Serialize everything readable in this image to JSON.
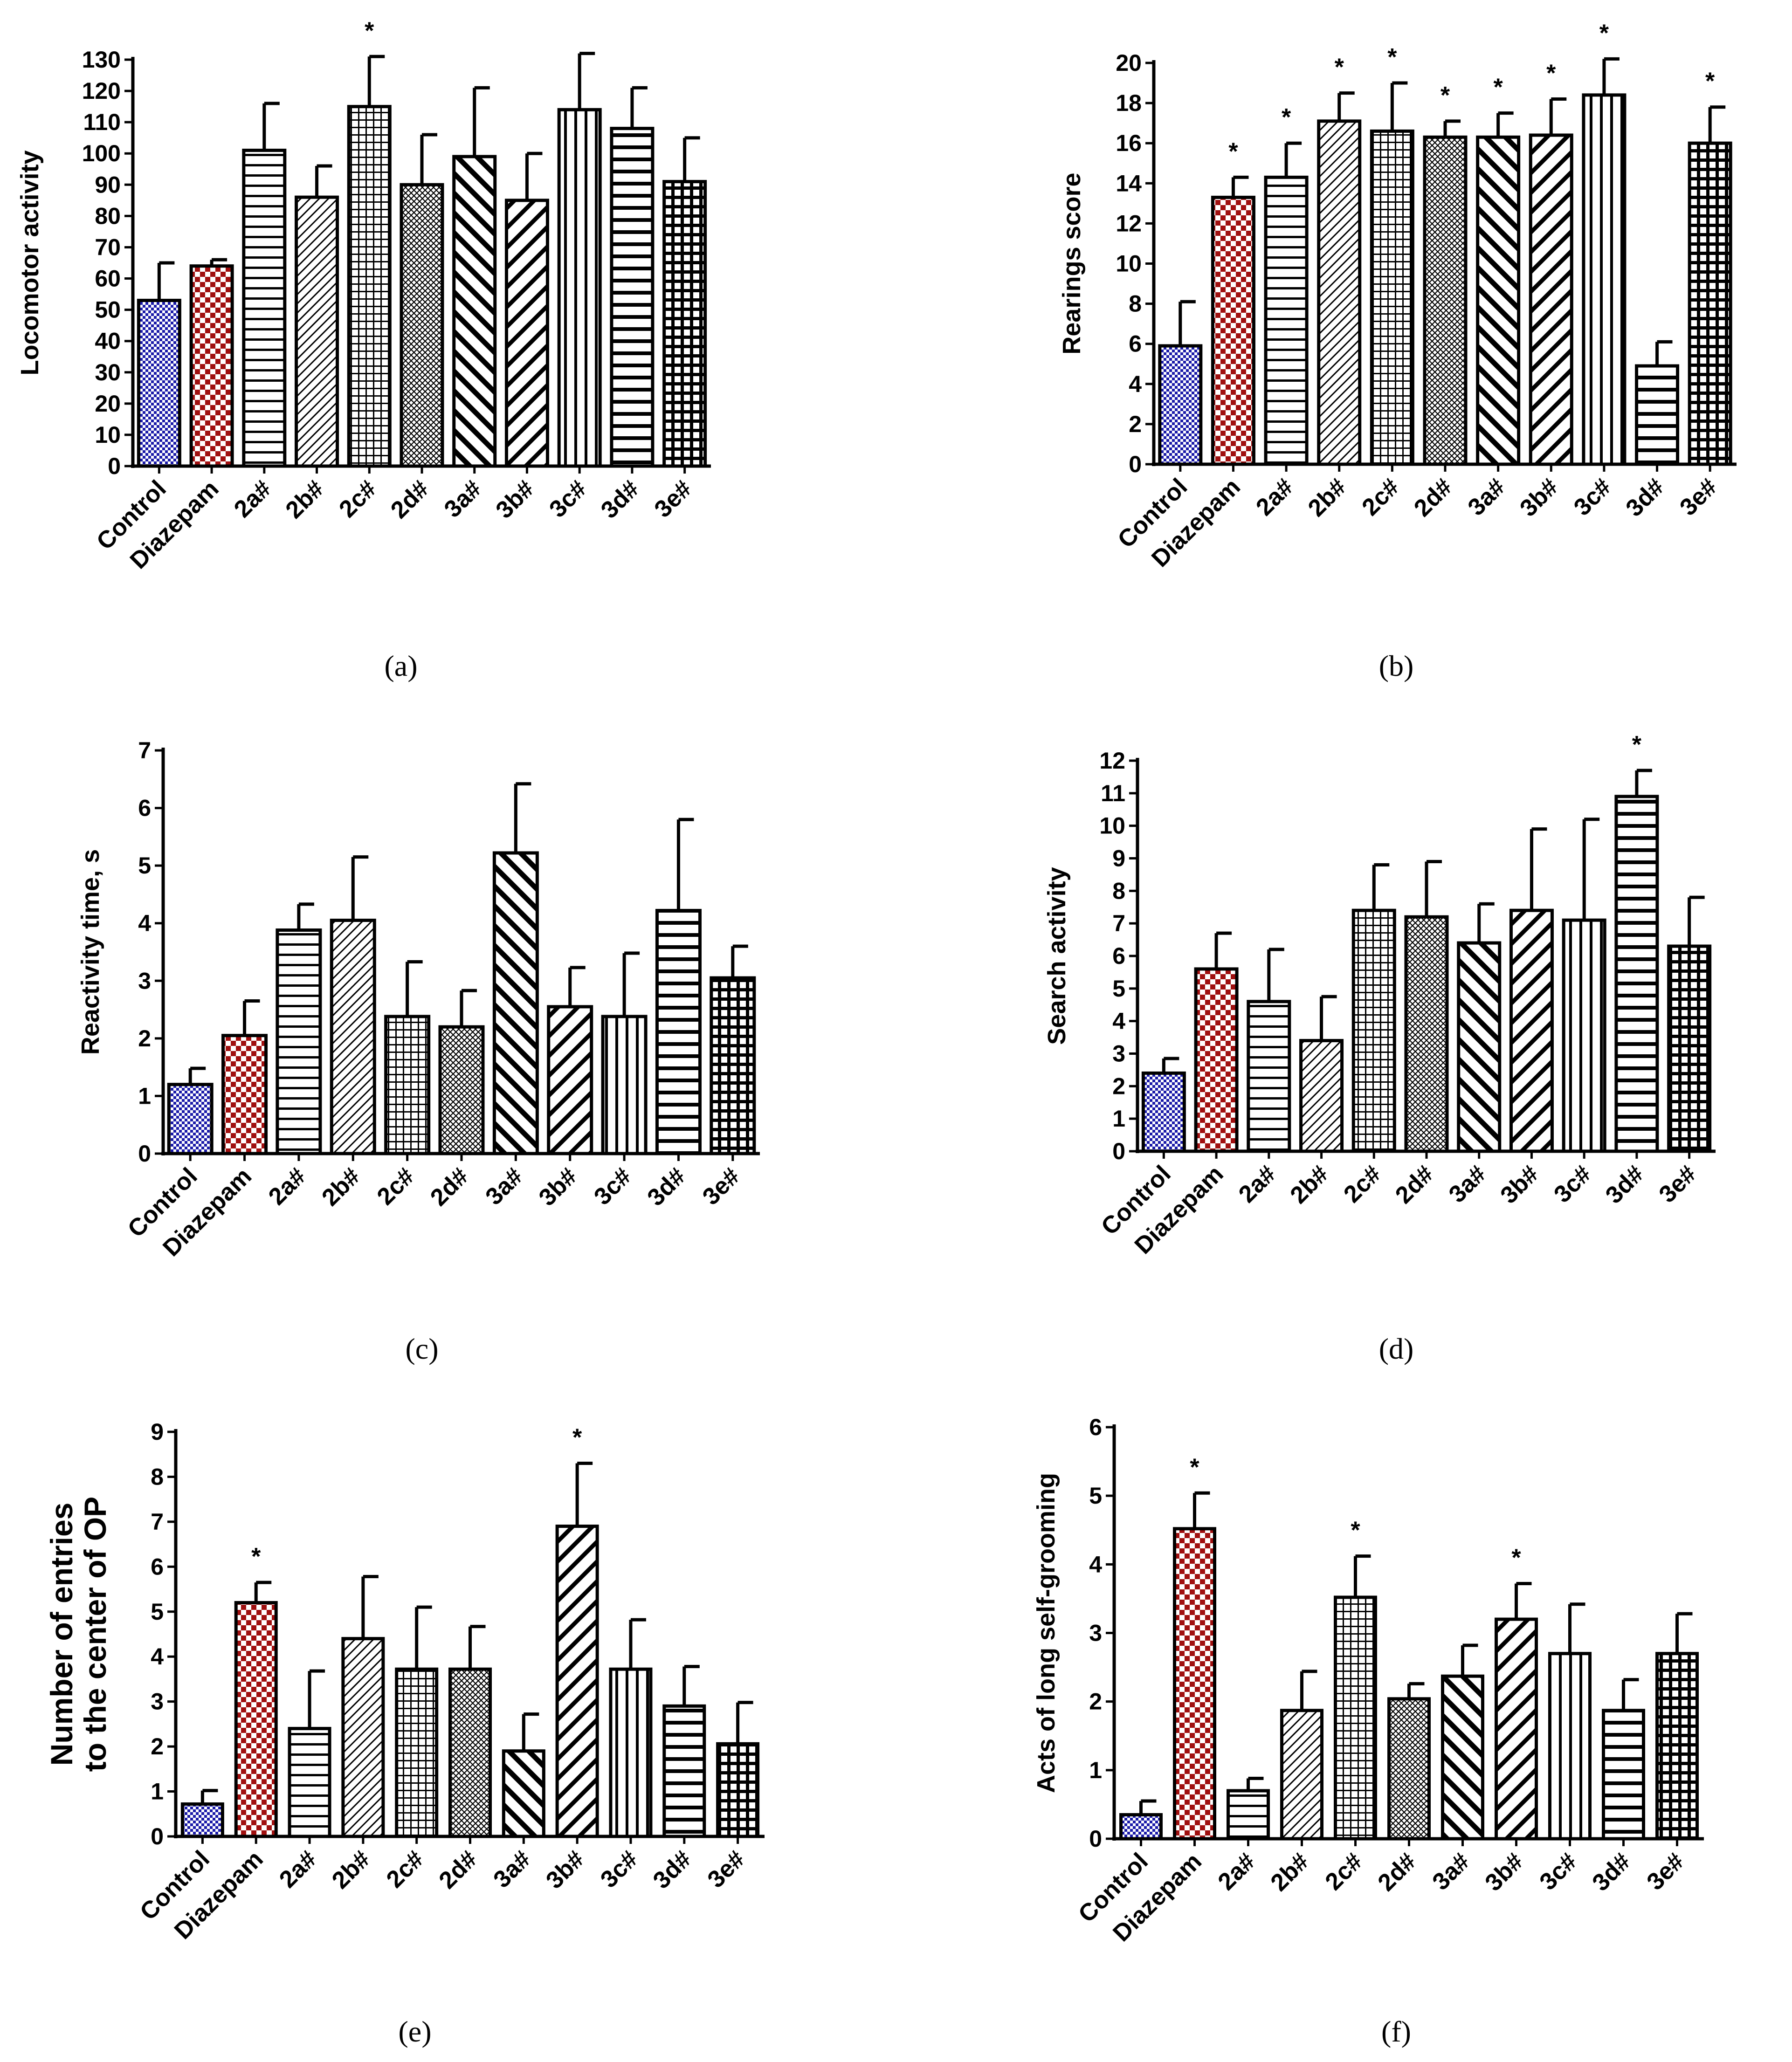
{
  "categories": [
    "Control",
    "Diazepam",
    "2a#",
    "2b#",
    "2c#",
    "2d#",
    "3a#",
    "3b#",
    "3c#",
    "3d#",
    "3e#"
  ],
  "colors": {
    "control": "#1a1aa8",
    "diazepam": "#a01010",
    "ink": "#000000"
  },
  "chart_data": [
    {
      "type": "bar",
      "panel": "a",
      "caption": "(a)",
      "ylabel": "Locomotor activity",
      "ylim": [
        0,
        130
      ],
      "ytick_step": 10,
      "categories": [
        "Control",
        "Diazepam",
        "2a#",
        "2b#",
        "2c#",
        "2d#",
        "3a#",
        "3b#",
        "3c#",
        "3d#",
        "3e#"
      ],
      "values": [
        53,
        64,
        101,
        86,
        115,
        90,
        99,
        85,
        114,
        108,
        91
      ],
      "errors": [
        12,
        2,
        15,
        10,
        16,
        16,
        22,
        15,
        18,
        13,
        14
      ],
      "significant": [
        false,
        false,
        false,
        false,
        true,
        false,
        false,
        false,
        false,
        false,
        false
      ]
    },
    {
      "type": "bar",
      "panel": "b",
      "caption": "(b)",
      "ylabel": "Rearings score",
      "ylim": [
        0,
        20
      ],
      "ytick_step": 2,
      "categories": [
        "Control",
        "Diazepam",
        "2a#",
        "2b#",
        "2c#",
        "2d#",
        "3a#",
        "3b#",
        "3c#",
        "3d#",
        "3e#"
      ],
      "values": [
        5.9,
        13.3,
        14.3,
        17.1,
        16.6,
        16.3,
        16.3,
        16.4,
        18.4,
        4.9,
        16.0
      ],
      "errors": [
        2.2,
        1.0,
        1.7,
        1.4,
        2.4,
        0.8,
        1.2,
        1.8,
        1.8,
        1.2,
        1.8
      ],
      "significant": [
        false,
        true,
        true,
        true,
        true,
        true,
        true,
        true,
        true,
        false,
        true
      ]
    },
    {
      "type": "bar",
      "panel": "c",
      "caption": "(c)",
      "ylabel": "Reactivity time, s",
      "ylim": [
        0,
        7
      ],
      "ytick_step": 1,
      "categories": [
        "Control",
        "Diazepam",
        "2a#",
        "2b#",
        "2c#",
        "2d#",
        "3a#",
        "3b#",
        "3c#",
        "3d#",
        "3e#"
      ],
      "values": [
        1.2,
        2.05,
        3.88,
        4.05,
        2.38,
        2.2,
        5.22,
        2.55,
        2.38,
        4.22,
        3.05
      ],
      "errors": [
        0.28,
        0.6,
        0.45,
        1.1,
        0.95,
        0.63,
        1.2,
        0.68,
        1.1,
        1.58,
        0.55
      ],
      "significant": [
        false,
        false,
        false,
        false,
        false,
        false,
        false,
        false,
        false,
        false,
        false
      ]
    },
    {
      "type": "bar",
      "panel": "d",
      "caption": "(d)",
      "ylabel": "Search activity",
      "ylim": [
        0,
        12
      ],
      "ytick_step": 1,
      "categories": [
        "Control",
        "Diazepam",
        "2a#",
        "2b#",
        "2c#",
        "2d#",
        "3a#",
        "3b#",
        "3c#",
        "3d#",
        "3e#"
      ],
      "values": [
        2.4,
        5.6,
        4.6,
        3.4,
        7.4,
        7.2,
        6.4,
        7.4,
        7.1,
        10.9,
        6.3
      ],
      "errors": [
        0.45,
        1.1,
        1.6,
        1.35,
        1.4,
        1.7,
        1.2,
        2.5,
        3.1,
        0.8,
        1.5
      ],
      "significant": [
        false,
        false,
        false,
        false,
        false,
        false,
        false,
        false,
        false,
        true,
        false
      ]
    },
    {
      "type": "bar",
      "panel": "e",
      "caption": "(e)",
      "ylabel": [
        "Number of entries",
        "to the center of OP"
      ],
      "ylim": [
        0,
        9
      ],
      "ytick_step": 1,
      "categories": [
        "Control",
        "Diazepam",
        "2a#",
        "2b#",
        "2c#",
        "2d#",
        "3a#",
        "3b#",
        "3c#",
        "3d#",
        "3e#"
      ],
      "values": [
        0.72,
        5.2,
        2.4,
        4.4,
        3.72,
        3.72,
        1.9,
        6.9,
        3.72,
        2.9,
        2.06
      ],
      "errors": [
        0.3,
        0.45,
        1.28,
        1.38,
        1.38,
        0.95,
        0.82,
        1.4,
        1.1,
        0.88,
        0.92
      ],
      "significant": [
        false,
        true,
        false,
        false,
        false,
        false,
        false,
        true,
        false,
        false,
        false
      ]
    },
    {
      "type": "bar",
      "panel": "f",
      "caption": "(f)",
      "ylabel": "Acts of long self-grooming",
      "ylim": [
        0,
        6
      ],
      "ytick_step": 1,
      "categories": [
        "Control",
        "Diazepam",
        "2a#",
        "2b#",
        "2c#",
        "2d#",
        "3a#",
        "3b#",
        "3c#",
        "3d#",
        "3e#"
      ],
      "values": [
        0.35,
        4.52,
        0.7,
        1.87,
        3.52,
        2.04,
        2.37,
        3.2,
        2.7,
        1.87,
        2.7
      ],
      "errors": [
        0.2,
        0.52,
        0.18,
        0.57,
        0.6,
        0.22,
        0.45,
        0.52,
        0.72,
        0.45,
        0.58
      ],
      "significant": [
        false,
        true,
        false,
        false,
        true,
        false,
        false,
        true,
        false,
        false,
        false
      ]
    }
  ]
}
